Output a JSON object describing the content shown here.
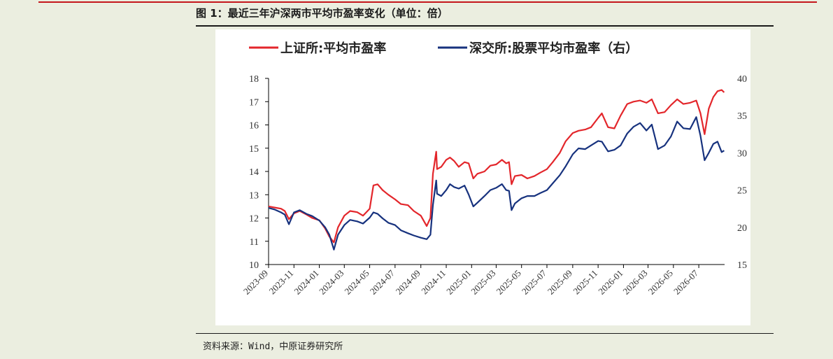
{
  "figure": {
    "title": "图 1：最近三年沪深两市平均市盈率变化（单位：倍）",
    "source": "资料来源：Wind，中原证券研究所"
  },
  "colors": {
    "sse": "#e3262b",
    "szse": "#17327e",
    "background": "#ebeee0",
    "panel": "#ffffff"
  },
  "chart_data": {
    "type": "line",
    "title": "",
    "xlabel": "",
    "ylabel": "",
    "x_ticks": [
      "2023-09",
      "2023-11",
      "2024-01",
      "2024-03",
      "2024-05",
      "2024-07",
      "2024-09",
      "2024-11",
      "2025-01",
      "2025-03",
      "2025-05",
      "2025-07",
      "2025-09",
      "2025-11",
      "2026-01",
      "2026-03",
      "2026-05",
      "2026-07"
    ],
    "y_left": {
      "lim": [
        10,
        18
      ],
      "ticks": [
        "10",
        "11",
        "12",
        "13",
        "14",
        "15",
        "16",
        "17",
        "18"
      ]
    },
    "y_right": {
      "lim": [
        15,
        40
      ],
      "ticks": [
        "15",
        "20",
        "25",
        "30",
        "35",
        "40"
      ]
    },
    "legend_position": "top",
    "grid": false,
    "series": [
      {
        "name": "上证所:平均市盈率",
        "axis": "left",
        "color": "#e3262b",
        "points": [
          [
            "2023-09-01",
            12.5
          ],
          [
            "2023-09-15",
            12.45
          ],
          [
            "2023-10-01",
            12.4
          ],
          [
            "2023-10-10",
            12.3
          ],
          [
            "2023-10-20",
            11.95
          ],
          [
            "2023-11-01",
            12.2
          ],
          [
            "2023-11-15",
            12.3
          ],
          [
            "2023-12-01",
            12.15
          ],
          [
            "2023-12-15",
            12.0
          ],
          [
            "2024-01-01",
            11.9
          ],
          [
            "2024-01-15",
            11.55
          ],
          [
            "2024-01-25",
            11.2
          ],
          [
            "2024-02-05",
            10.95
          ],
          [
            "2024-02-15",
            11.6
          ],
          [
            "2024-03-01",
            12.1
          ],
          [
            "2024-03-15",
            12.3
          ],
          [
            "2024-04-01",
            12.25
          ],
          [
            "2024-04-15",
            12.1
          ],
          [
            "2024-05-01",
            12.4
          ],
          [
            "2024-05-10",
            13.4
          ],
          [
            "2024-05-20",
            13.45
          ],
          [
            "2024-06-01",
            13.2
          ],
          [
            "2024-06-15",
            13.0
          ],
          [
            "2024-07-01",
            12.8
          ],
          [
            "2024-07-15",
            12.6
          ],
          [
            "2024-08-01",
            12.55
          ],
          [
            "2024-08-15",
            12.3
          ],
          [
            "2024-09-01",
            12.1
          ],
          [
            "2024-09-15",
            11.65
          ],
          [
            "2024-09-24",
            12.0
          ],
          [
            "2024-09-30",
            13.9
          ],
          [
            "2024-10-08",
            14.85
          ],
          [
            "2024-10-10",
            14.1
          ],
          [
            "2024-10-20",
            14.2
          ],
          [
            "2024-11-01",
            14.5
          ],
          [
            "2024-11-10",
            14.6
          ],
          [
            "2024-11-20",
            14.45
          ],
          [
            "2024-12-01",
            14.2
          ],
          [
            "2024-12-15",
            14.4
          ],
          [
            "2024-12-25",
            14.35
          ],
          [
            "2025-01-05",
            13.7
          ],
          [
            "2025-01-15",
            13.9
          ],
          [
            "2025-02-01",
            14.0
          ],
          [
            "2025-02-15",
            14.25
          ],
          [
            "2025-03-01",
            14.3
          ],
          [
            "2025-03-15",
            14.5
          ],
          [
            "2025-03-25",
            14.35
          ],
          [
            "2025-04-01",
            14.4
          ],
          [
            "2025-04-07",
            13.45
          ],
          [
            "2025-04-15",
            13.8
          ],
          [
            "2025-05-01",
            13.85
          ],
          [
            "2025-05-15",
            13.7
          ],
          [
            "2025-06-01",
            13.8
          ],
          [
            "2025-06-15",
            13.95
          ],
          [
            "2025-07-01",
            14.1
          ],
          [
            "2025-07-15",
            14.4
          ],
          [
            "2025-08-01",
            14.8
          ],
          [
            "2025-08-15",
            15.3
          ],
          [
            "2025-09-01",
            15.65
          ],
          [
            "2025-09-15",
            15.75
          ],
          [
            "2025-10-01",
            15.8
          ],
          [
            "2025-10-15",
            15.9
          ],
          [
            "2025-11-01",
            16.3
          ],
          [
            "2025-11-10",
            16.5
          ],
          [
            "2025-11-25",
            15.9
          ],
          [
            "2025-12-10",
            15.85
          ],
          [
            "2025-12-25",
            16.4
          ],
          [
            "2026-01-10",
            16.9
          ],
          [
            "2026-01-25",
            17.0
          ],
          [
            "2026-02-10",
            17.05
          ],
          [
            "2026-02-25",
            16.95
          ],
          [
            "2026-03-10",
            17.1
          ],
          [
            "2026-03-25",
            16.5
          ],
          [
            "2026-04-10",
            16.55
          ],
          [
            "2026-04-25",
            16.85
          ],
          [
            "2026-05-10",
            17.1
          ],
          [
            "2026-05-25",
            16.9
          ],
          [
            "2026-06-10",
            16.95
          ],
          [
            "2026-06-25",
            17.05
          ],
          [
            "2026-07-05",
            16.5
          ],
          [
            "2026-07-15",
            15.6
          ],
          [
            "2026-07-25",
            16.7
          ],
          [
            "2026-08-05",
            17.2
          ],
          [
            "2026-08-15",
            17.45
          ],
          [
            "2026-08-25",
            17.5
          ],
          [
            "2026-08-31",
            17.4
          ]
        ]
      },
      {
        "name": "深交所:股票平均市盈率（右）",
        "axis": "right",
        "color": "#17327e",
        "points": [
          [
            "2023-09-01",
            22.6
          ],
          [
            "2023-09-15",
            22.4
          ],
          [
            "2023-10-01",
            22.0
          ],
          [
            "2023-10-10",
            21.7
          ],
          [
            "2023-10-20",
            20.4
          ],
          [
            "2023-11-01",
            22.0
          ],
          [
            "2023-11-15",
            22.3
          ],
          [
            "2023-12-01",
            21.8
          ],
          [
            "2023-12-15",
            21.5
          ],
          [
            "2024-01-01",
            20.9
          ],
          [
            "2024-01-15",
            20.0
          ],
          [
            "2024-01-25",
            19.0
          ],
          [
            "2024-02-05",
            17.0
          ],
          [
            "2024-02-15",
            19.0
          ],
          [
            "2024-03-01",
            20.3
          ],
          [
            "2024-03-15",
            21.0
          ],
          [
            "2024-04-01",
            20.8
          ],
          [
            "2024-04-15",
            20.5
          ],
          [
            "2024-05-01",
            21.3
          ],
          [
            "2024-05-10",
            22.0
          ],
          [
            "2024-05-20",
            21.8
          ],
          [
            "2024-06-01",
            21.2
          ],
          [
            "2024-06-15",
            20.6
          ],
          [
            "2024-07-01",
            20.3
          ],
          [
            "2024-07-15",
            19.6
          ],
          [
            "2024-08-01",
            19.2
          ],
          [
            "2024-08-15",
            18.9
          ],
          [
            "2024-09-01",
            18.6
          ],
          [
            "2024-09-15",
            18.4
          ],
          [
            "2024-09-24",
            19.0
          ],
          [
            "2024-09-30",
            23.0
          ],
          [
            "2024-10-08",
            26.3
          ],
          [
            "2024-10-10",
            24.5
          ],
          [
            "2024-10-20",
            24.2
          ],
          [
            "2024-11-01",
            25.0
          ],
          [
            "2024-11-10",
            25.8
          ],
          [
            "2024-11-20",
            25.4
          ],
          [
            "2024-12-01",
            25.2
          ],
          [
            "2024-12-15",
            25.6
          ],
          [
            "2024-12-25",
            24.4
          ],
          [
            "2025-01-05",
            22.8
          ],
          [
            "2025-01-15",
            23.3
          ],
          [
            "2025-02-01",
            24.2
          ],
          [
            "2025-02-15",
            25.0
          ],
          [
            "2025-03-01",
            25.3
          ],
          [
            "2025-03-15",
            25.8
          ],
          [
            "2025-03-25",
            25.0
          ],
          [
            "2025-04-01",
            24.9
          ],
          [
            "2025-04-07",
            22.3
          ],
          [
            "2025-04-15",
            23.2
          ],
          [
            "2025-05-01",
            23.9
          ],
          [
            "2025-05-15",
            24.2
          ],
          [
            "2025-06-01",
            24.2
          ],
          [
            "2025-06-15",
            24.6
          ],
          [
            "2025-07-01",
            25.0
          ],
          [
            "2025-07-15",
            25.9
          ],
          [
            "2025-08-01",
            27.0
          ],
          [
            "2025-08-15",
            28.2
          ],
          [
            "2025-09-01",
            29.8
          ],
          [
            "2025-09-15",
            30.6
          ],
          [
            "2025-10-01",
            30.5
          ],
          [
            "2025-10-15",
            31.0
          ],
          [
            "2025-11-01",
            31.6
          ],
          [
            "2025-11-10",
            31.5
          ],
          [
            "2025-11-25",
            30.2
          ],
          [
            "2025-12-10",
            30.4
          ],
          [
            "2025-12-25",
            31.0
          ],
          [
            "2026-01-10",
            32.6
          ],
          [
            "2026-01-25",
            33.5
          ],
          [
            "2026-02-10",
            34.0
          ],
          [
            "2026-02-25",
            33.0
          ],
          [
            "2026-03-10",
            33.8
          ],
          [
            "2026-03-25",
            30.5
          ],
          [
            "2026-04-10",
            31.0
          ],
          [
            "2026-04-25",
            32.2
          ],
          [
            "2026-05-10",
            34.2
          ],
          [
            "2026-05-25",
            33.3
          ],
          [
            "2026-06-10",
            33.2
          ],
          [
            "2026-06-25",
            34.8
          ],
          [
            "2026-07-05",
            32.3
          ],
          [
            "2026-07-15",
            29.0
          ],
          [
            "2026-07-25",
            30.0
          ],
          [
            "2026-08-05",
            31.2
          ],
          [
            "2026-08-15",
            31.5
          ],
          [
            "2026-08-25",
            30.1
          ],
          [
            "2026-08-31",
            30.3
          ]
        ]
      }
    ]
  }
}
